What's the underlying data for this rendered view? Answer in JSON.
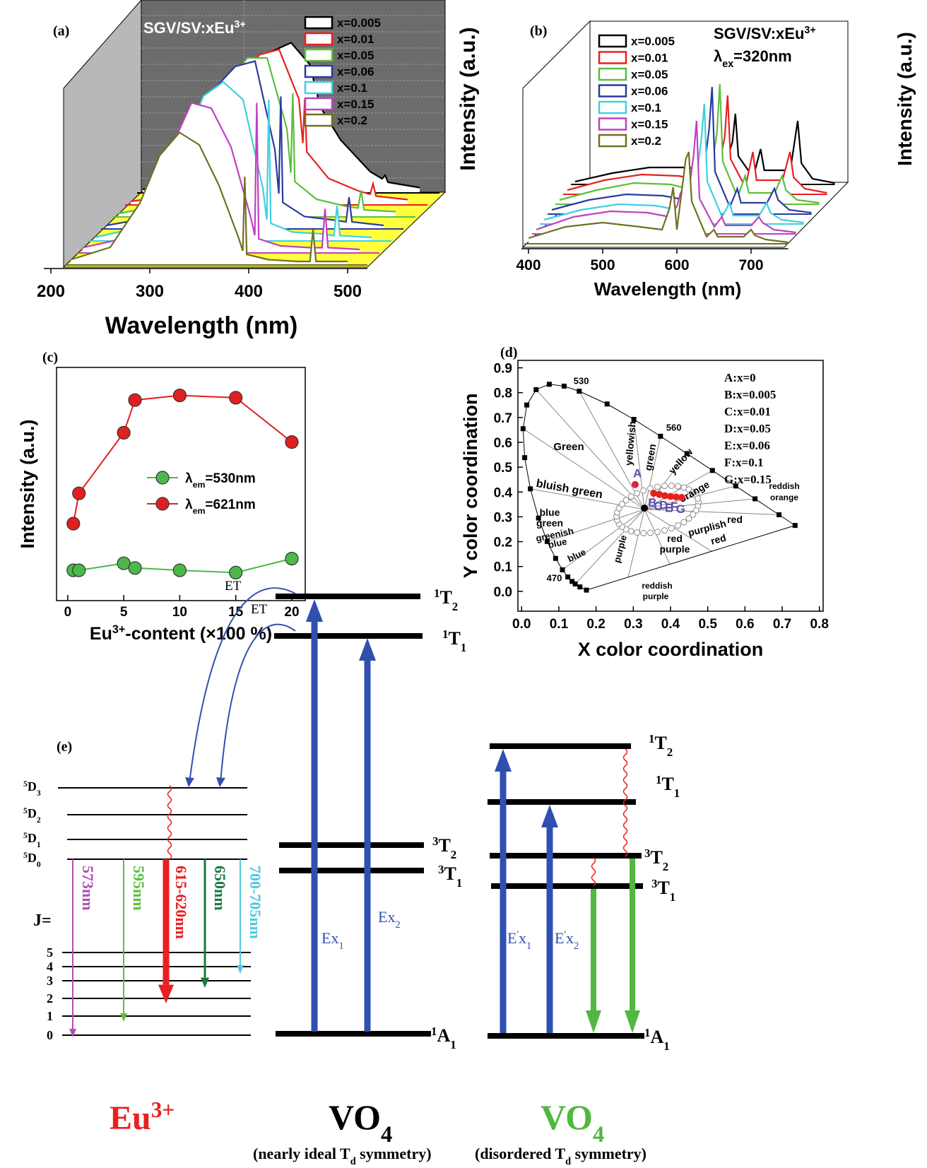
{
  "chart_data": [
    {
      "type": "waterfall",
      "panel_label": "(a)",
      "title": [
        [
          "SGV/SV:xEu",
          ""
        ],
        [
          "3+",
          "sup"
        ]
      ],
      "x_label": "Wavelength (nm)",
      "y_label": "Intensity (a.u.)",
      "xlim": [
        200,
        520
      ],
      "xticks": [
        200,
        300,
        400,
        500
      ],
      "x": [
        220,
        260,
        290,
        310,
        330,
        350,
        370,
        390,
        394,
        396,
        398,
        420,
        450,
        462,
        465,
        468,
        500
      ],
      "series": [
        {
          "name": "x=0.005",
          "color": "#000000",
          "values": [
            0.02,
            0.05,
            0.15,
            0.35,
            0.6,
            0.8,
            0.85,
            0.72,
            0.6,
            0.58,
            0.5,
            0.3,
            0.12,
            0.08,
            0.1,
            0.06,
            0.03
          ]
        },
        {
          "name": "x=0.01",
          "color": "#e82020",
          "values": [
            0.02,
            0.05,
            0.17,
            0.4,
            0.68,
            0.85,
            0.88,
            0.6,
            0.35,
            0.6,
            0.3,
            0.15,
            0.08,
            0.06,
            0.12,
            0.05,
            0.03
          ]
        },
        {
          "name": "x=0.05",
          "color": "#5cbf3c",
          "values": [
            0.02,
            0.06,
            0.2,
            0.45,
            0.75,
            0.9,
            0.9,
            0.5,
            0.25,
            0.7,
            0.2,
            0.1,
            0.06,
            0.05,
            0.15,
            0.04,
            0.03
          ]
        },
        {
          "name": "x=0.06",
          "color": "#2b3aa0",
          "values": [
            0.02,
            0.06,
            0.22,
            0.5,
            0.8,
            0.92,
            0.95,
            0.45,
            0.2,
            0.75,
            0.15,
            0.07,
            0.05,
            0.04,
            0.18,
            0.04,
            0.02
          ]
        },
        {
          "name": "x=0.1",
          "color": "#40d0e0",
          "values": [
            0.02,
            0.07,
            0.25,
            0.55,
            0.82,
            0.9,
            0.8,
            0.3,
            0.12,
            0.8,
            0.1,
            0.05,
            0.04,
            0.03,
            0.2,
            0.03,
            0.02
          ]
        },
        {
          "name": "x=0.15",
          "color": "#c040c0",
          "values": [
            0.03,
            0.08,
            0.3,
            0.6,
            0.85,
            0.82,
            0.6,
            0.2,
            0.1,
            0.85,
            0.08,
            0.04,
            0.03,
            0.03,
            0.25,
            0.03,
            0.02
          ]
        },
        {
          "name": "x=0.2",
          "color": "#707020",
          "values": [
            0.03,
            0.1,
            0.35,
            0.62,
            0.75,
            0.68,
            0.45,
            0.15,
            0.08,
            0.5,
            0.06,
            0.03,
            0.02,
            0.02,
            0.2,
            0.02,
            0.02
          ]
        }
      ]
    },
    {
      "type": "waterfall",
      "panel_label": "(b)",
      "title": [
        [
          "SGV/SV:xEu",
          ""
        ],
        [
          "3+",
          "sup"
        ]
      ],
      "subtitle": [
        [
          "λ",
          ""
        ],
        [
          "ex",
          "sub"
        ],
        [
          "=320nm",
          ""
        ]
      ],
      "x_label": "Wavelength (nm)",
      "y_label": "Intensity (a.u.)",
      "xlim": [
        400,
        750
      ],
      "xticks": [
        400,
        500,
        600,
        700
      ],
      "x": [
        400,
        450,
        500,
        550,
        580,
        590,
        595,
        600,
        612,
        616,
        620,
        640,
        650,
        655,
        690,
        700,
        705,
        720,
        750
      ],
      "series": [
        {
          "name": "x=0.005",
          "color": "#000000",
          "values": [
            0.02,
            0.08,
            0.12,
            0.12,
            0.1,
            0.12,
            0.15,
            0.1,
            0.3,
            0.5,
            0.2,
            0.05,
            0.25,
            0.1,
            0.1,
            0.45,
            0.15,
            0.04,
            0.01
          ]
        },
        {
          "name": "x=0.01",
          "color": "#e82020",
          "values": [
            0.03,
            0.1,
            0.14,
            0.13,
            0.1,
            0.15,
            0.2,
            0.1,
            0.4,
            0.7,
            0.25,
            0.05,
            0.3,
            0.1,
            0.1,
            0.3,
            0.12,
            0.04,
            0.01
          ]
        },
        {
          "name": "x=0.05",
          "color": "#5cbf3c",
          "values": [
            0.03,
            0.1,
            0.15,
            0.14,
            0.1,
            0.18,
            0.25,
            0.1,
            0.5,
            0.85,
            0.3,
            0.05,
            0.2,
            0.08,
            0.08,
            0.2,
            0.1,
            0.03,
            0.01
          ]
        },
        {
          "name": "x=0.06",
          "color": "#2b3aa0",
          "values": [
            0.03,
            0.1,
            0.14,
            0.13,
            0.1,
            0.2,
            0.3,
            0.1,
            0.6,
            0.9,
            0.3,
            0.05,
            0.18,
            0.08,
            0.08,
            0.18,
            0.1,
            0.03,
            0.01
          ]
        },
        {
          "name": "x=0.1",
          "color": "#40d0e0",
          "values": [
            0.03,
            0.1,
            0.14,
            0.13,
            0.1,
            0.2,
            0.3,
            0.1,
            0.6,
            0.85,
            0.3,
            0.05,
            0.15,
            0.06,
            0.06,
            0.15,
            0.08,
            0.03,
            0.01
          ]
        },
        {
          "name": "x=0.15",
          "color": "#c040c0",
          "values": [
            0.03,
            0.12,
            0.16,
            0.15,
            0.12,
            0.2,
            0.3,
            0.1,
            0.55,
            0.8,
            0.25,
            0.05,
            0.12,
            0.06,
            0.06,
            0.12,
            0.08,
            0.03,
            0.01
          ]
        },
        {
          "name": "x=0.2",
          "color": "#707020",
          "values": [
            0.04,
            0.12,
            0.15,
            0.12,
            0.1,
            0.25,
            0.4,
            0.1,
            0.6,
            0.65,
            0.3,
            0.05,
            0.1,
            0.05,
            0.05,
            0.1,
            0.06,
            0.03,
            0.01
          ]
        }
      ]
    },
    {
      "type": "line",
      "panel_label": "(c)",
      "x_label": [
        [
          "Eu",
          ""
        ],
        [
          "3+",
          "sup"
        ],
        [
          "-content (×100 %)",
          ""
        ]
      ],
      "y_label": "Intensity (a.u.)",
      "xlim": [
        -1,
        21.2
      ],
      "ylim": [
        0,
        1
      ],
      "xticks": [
        0,
        5,
        10,
        15,
        20
      ],
      "x": [
        0.5,
        1,
        5,
        6,
        10,
        15,
        20
      ],
      "series": [
        {
          "name": [
            [
              "λ",
              ""
            ],
            [
              "em",
              "sub"
            ],
            [
              "=530nm",
              ""
            ]
          ],
          "color": "#4cb84c",
          "values": [
            0.13,
            0.13,
            0.16,
            0.14,
            0.13,
            0.12,
            0.18
          ]
        },
        {
          "name": [
            [
              "λ",
              ""
            ],
            [
              "em",
              "sub"
            ],
            [
              "=621nm",
              ""
            ]
          ],
          "color": "#e02020",
          "values": [
            0.33,
            0.46,
            0.72,
            0.86,
            0.88,
            0.87,
            0.68
          ]
        }
      ]
    },
    {
      "type": "cie",
      "panel_label": "(d)",
      "x_label": "X color coordination",
      "y_label": "Y color coordination",
      "xlim": [
        -0.01,
        0.81
      ],
      "ylim": [
        -0.08,
        0.93
      ],
      "xticks": [
        {
          "value": 0,
          "label": "0.0"
        },
        0.1,
        0.2,
        0.3,
        0.4,
        0.5,
        0.6,
        0.7,
        0.8
      ],
      "yticks": [
        {
          "value": 0,
          "label": "0.0"
        },
        0.1,
        0.2,
        0.3,
        0.4,
        0.5,
        0.6,
        0.7,
        0.8,
        0.9
      ],
      "locus": {
        "x": [
          0.1741,
          0.1566,
          0.144,
          0.1355,
          0.1241,
          0.1096,
          0.0913,
          0.0687,
          0.0454,
          0.0235,
          0.0082,
          0.0039,
          0.0139,
          0.0389,
          0.0743,
          0.1142,
          0.1547,
          0.2296,
          0.3016,
          0.3731,
          0.4441,
          0.5125,
          0.5752,
          0.627,
          0.6915,
          0.7347
        ],
        "y": [
          0.005,
          0.0177,
          0.0297,
          0.0399,
          0.0578,
          0.0868,
          0.1327,
          0.2007,
          0.295,
          0.4127,
          0.5384,
          0.6548,
          0.7502,
          0.812,
          0.8338,
          0.8262,
          0.8059,
          0.7543,
          0.6923,
          0.6245,
          0.5547,
          0.4866,
          0.4242,
          0.3725,
          0.3083,
          0.2653
        ]
      },
      "locus_labels": [
        {
          "label": "530",
          "x": 0.1547,
          "y": 0.8059
        },
        {
          "label": "560",
          "x": 0.3731,
          "y": 0.6245
        },
        {
          "label": "470",
          "x": 0.1241,
          "y": 0.0578
        }
      ],
      "region_labels": [
        "Green",
        "yellowish",
        "green",
        "yellow",
        "orange",
        "reddish",
        "orange",
        "red",
        "purplish",
        "red",
        "red",
        "purple",
        "purple",
        "reddish",
        "purple",
        "bluish green",
        "blue",
        "green",
        "greenish",
        "blue",
        "blue"
      ],
      "points": [
        {
          "label": "A",
          "x": 0.305,
          "y": 0.43,
          "color": "#e02040"
        },
        {
          "label": "B",
          "x": 0.355,
          "y": 0.395,
          "color": "#e82020"
        },
        {
          "label": "C",
          "x": 0.37,
          "y": 0.39,
          "color": "#e82020"
        },
        {
          "label": "D",
          "x": 0.385,
          "y": 0.385,
          "color": "#e82020"
        },
        {
          "label": "E",
          "x": 0.4,
          "y": 0.382,
          "color": "#e82020"
        },
        {
          "label": "F",
          "x": 0.415,
          "y": 0.38,
          "color": "#e82020"
        },
        {
          "label": "G",
          "x": 0.43,
          "y": 0.378,
          "color": "#e82020"
        },
        {
          "x": 0.33,
          "y": 0.335,
          "color": "#000000"
        }
      ],
      "legend": [
        "A:x=0",
        "B:x=0.005",
        "C:x=0.01",
        "D:x=0.05",
        "E:x=0.06",
        "F:x=0.1",
        "G:x=0.15"
      ]
    }
  ],
  "energy_diagram": {
    "panel_label": "(e)",
    "et_labels": [
      "ET",
      "ET"
    ],
    "eu_levels": [
      [
        [
          "5",
          "sup"
        ],
        [
          "D",
          ""
        ],
        [
          "3",
          "sub"
        ]
      ],
      [
        [
          "5",
          "sup"
        ],
        [
          "D",
          ""
        ],
        [
          "2",
          "sub"
        ]
      ],
      [
        [
          "5",
          "sup"
        ],
        [
          "D",
          ""
        ],
        [
          "1",
          "sub"
        ]
      ],
      [
        [
          "5",
          "sup"
        ],
        [
          "D",
          ""
        ],
        [
          "0",
          "sub"
        ]
      ]
    ],
    "j_label": "J=",
    "j_levels": [
      "5",
      "4",
      "3",
      "2",
      "1",
      "0"
    ],
    "transitions": [
      {
        "label": "573nm",
        "color": "#b050b0"
      },
      {
        "label": "595nm",
        "color": "#5cc040"
      },
      {
        "label": "615-620nm",
        "color": "#e82020"
      },
      {
        "label": "650nm",
        "color": "#1a7a40"
      },
      {
        "label": "700-705nm",
        "color": "#50c8e0"
      }
    ],
    "vo4_levels": [
      [
        [
          "1",
          "sup"
        ],
        [
          "T",
          ""
        ],
        [
          "2",
          "sub"
        ]
      ],
      [
        [
          "1",
          "sup"
        ],
        [
          "T",
          ""
        ],
        [
          "1",
          "sub"
        ]
      ],
      [
        [
          "3",
          "sup"
        ],
        [
          "T",
          ""
        ],
        [
          "2",
          "sub"
        ]
      ],
      [
        [
          "3",
          "sup"
        ],
        [
          "T",
          ""
        ],
        [
          "1",
          "sub"
        ]
      ],
      [
        [
          "1",
          "sup"
        ],
        [
          "A",
          ""
        ],
        [
          "1",
          "sub"
        ]
      ]
    ],
    "vo4_excitations": [
      [
        [
          "Ex",
          ""
        ],
        [
          "1",
          "sub"
        ]
      ],
      [
        [
          "Ex",
          ""
        ],
        [
          "2",
          "sub"
        ]
      ]
    ],
    "vo4_disordered_levels": [
      [
        [
          "1",
          "sup"
        ],
        [
          "T",
          ""
        ],
        [
          "2",
          "sub"
        ]
      ],
      [
        [
          "1",
          "sup"
        ],
        [
          "T",
          ""
        ],
        [
          "1",
          "sub"
        ]
      ],
      [
        [
          "3",
          "sup"
        ],
        [
          "T",
          ""
        ],
        [
          "2",
          "sub"
        ]
      ],
      [
        [
          "3",
          "sup"
        ],
        [
          "T",
          ""
        ],
        [
          "1",
          "sub"
        ]
      ],
      [
        [
          "1",
          "sup"
        ],
        [
          "A",
          ""
        ],
        [
          "1",
          "sub"
        ]
      ]
    ],
    "vo4_disordered_excitations": [
      [
        [
          "E",
          ""
        ],
        [
          "'",
          "sup"
        ],
        [
          "x",
          ""
        ],
        [
          "1",
          "sub"
        ]
      ],
      [
        [
          "E",
          ""
        ],
        [
          "'",
          "sup"
        ],
        [
          "x",
          ""
        ],
        [
          "2",
          "sub"
        ]
      ]
    ],
    "species": [
      [
        [
          "Eu",
          ""
        ],
        [
          "3+",
          "sup"
        ]
      ],
      [
        [
          "VO",
          ""
        ],
        [
          "4",
          "sub"
        ]
      ],
      [
        [
          "VO",
          ""
        ],
        [
          "4",
          "sub"
        ]
      ]
    ],
    "captions": [
      [
        [
          "(nearly ideal T",
          ""
        ],
        [
          "d",
          "sub"
        ],
        [
          " symmetry)",
          ""
        ]
      ],
      [
        [
          "(disordered T",
          ""
        ],
        [
          "d",
          "sub"
        ],
        [
          " symmetry)",
          ""
        ]
      ]
    ]
  }
}
